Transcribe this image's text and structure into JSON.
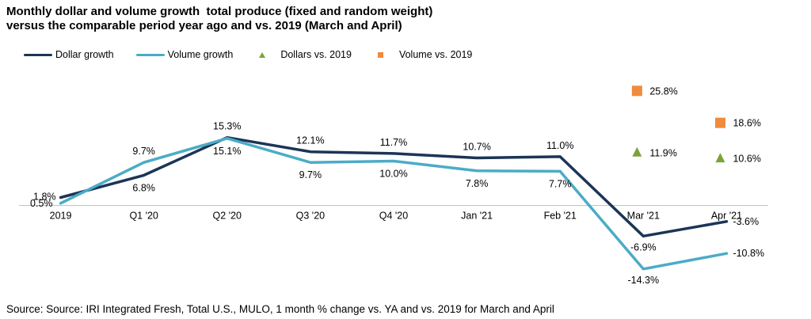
{
  "title_lines": [
    "Monthly dollar and volume growth  total produce (fixed and random weight)",
    "versus the comparable period year ago and vs. 2019 (March and April)"
  ],
  "source": "Source: Source: IRI Integrated Fresh, Total U.S., MULO, 1 month % change vs. YA and vs. 2019 for March and April",
  "colors": {
    "dollar": "#1b3556",
    "volume": "#4bacc6",
    "dollars_2019": "#7aa33a",
    "volume_2019": "#f08a3c",
    "axis": "#bfbfbf"
  },
  "chart_data": {
    "type": "line",
    "categories": [
      "2019",
      "Q1 '20",
      "Q2 '20",
      "Q3 '20",
      "Q4 '20",
      "Jan '21",
      "Feb '21",
      "Mar '21",
      "Apr '21"
    ],
    "series": [
      {
        "name": "Dollar growth",
        "values": [
          1.8,
          6.8,
          15.3,
          12.1,
          11.7,
          10.7,
          11.0,
          -6.9,
          -3.6
        ],
        "labels": [
          "1.8%",
          "6.8%",
          "15.3%",
          "12.1%",
          "11.7%",
          "10.7%",
          "11.0%",
          "-6.9%",
          "-3.6%"
        ]
      },
      {
        "name": "Volume growth",
        "values": [
          0.5,
          9.7,
          15.1,
          9.7,
          10.0,
          7.8,
          7.7,
          -14.3,
          -10.8
        ],
        "labels": [
          "0.5%",
          "9.7%",
          "15.1%",
          "9.7%",
          "10.0%",
          "7.8%",
          "7.7%",
          "-14.3%",
          "-10.8%"
        ]
      }
    ],
    "markers": [
      {
        "name": "Dollars vs. 2019",
        "shape": "triangle",
        "points": [
          {
            "category": "Mar '21",
            "value": 11.9,
            "label": "11.9%"
          },
          {
            "category": "Apr '21",
            "value": 10.6,
            "label": "10.6%"
          }
        ]
      },
      {
        "name": "Volume vs. 2019",
        "shape": "square",
        "points": [
          {
            "category": "Mar '21",
            "value": 25.8,
            "label": "25.8%"
          },
          {
            "category": "Apr '21",
            "value": 18.6,
            "label": "18.6%"
          }
        ]
      }
    ],
    "ylim": [
      -17,
      32
    ],
    "grid": false,
    "legend_position": "top-left"
  }
}
